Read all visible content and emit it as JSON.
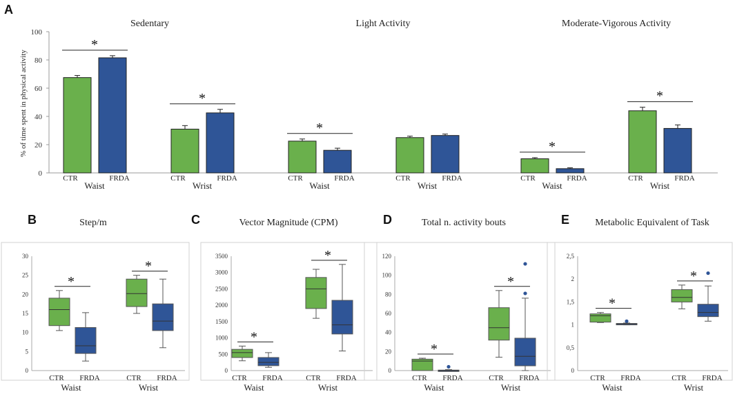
{
  "colors": {
    "ctr": "#6ab04c",
    "frda": "#2f5597",
    "outlier": "#2f5597",
    "axis": "#888888"
  },
  "chart_data": [
    {
      "id": "A",
      "type": "bar",
      "panel_label": "A",
      "ylabel": "% of time spent in physical activity",
      "ylim": [
        0,
        100
      ],
      "yticks": [
        0,
        20,
        40,
        60,
        80,
        100
      ],
      "series_names": [
        "CTR",
        "FRDA"
      ],
      "subplots": [
        {
          "title": "Sedentary",
          "groups": [
            {
              "name": "Waist",
              "values": [
                67.5,
                81.5
              ],
              "errors": [
                1.5,
                1.5
              ],
              "sig": "*"
            },
            {
              "name": "Wrist",
              "values": [
                31,
                42.5
              ],
              "errors": [
                2.5,
                2.5
              ],
              "sig": "*"
            }
          ]
        },
        {
          "title": "Light Activity",
          "groups": [
            {
              "name": "Waist",
              "values": [
                22.5,
                16
              ],
              "errors": [
                1.5,
                1.5
              ],
              "sig": "*"
            },
            {
              "name": "Wrist",
              "values": [
                25,
                26.5
              ],
              "errors": [
                1,
                1
              ],
              "sig": ""
            }
          ]
        },
        {
          "title": "Moderate-Vigorous Activity",
          "groups": [
            {
              "name": "Waist",
              "values": [
                10,
                3
              ],
              "errors": [
                0.8,
                0.6
              ],
              "sig": "*"
            },
            {
              "name": "Wrist",
              "values": [
                44,
                31.5
              ],
              "errors": [
                2.5,
                2.5
              ],
              "sig": "*"
            }
          ]
        }
      ]
    },
    {
      "id": "B",
      "type": "box",
      "panel_label": "B",
      "title": "Step/m",
      "ylim": [
        0,
        30
      ],
      "yticks": [
        "0",
        "5",
        "10",
        "15",
        "20",
        "25",
        "30"
      ],
      "ytick_values": [
        0,
        5,
        10,
        15,
        20,
        25,
        30
      ],
      "series_names": [
        "CTR",
        "FRDA"
      ],
      "groups": [
        {
          "name": "Waist",
          "sig": "*",
          "boxes": [
            {
              "min": 10.5,
              "q1": 11.8,
              "median": 16,
              "q3": 19,
              "max": 21,
              "outliers": []
            },
            {
              "min": 2.5,
              "q1": 4.5,
              "median": 6.5,
              "q3": 11.3,
              "max": 15.2,
              "outliers": []
            }
          ]
        },
        {
          "name": "Wrist",
          "sig": "*",
          "boxes": [
            {
              "min": 15,
              "q1": 16.8,
              "median": 20.2,
              "q3": 24,
              "max": 25,
              "outliers": []
            },
            {
              "min": 6,
              "q1": 10.5,
              "median": 13,
              "q3": 17.5,
              "max": 24,
              "outliers": []
            }
          ]
        }
      ]
    },
    {
      "id": "C",
      "type": "box",
      "panel_label": "C",
      "title": "Vector Magnitude (CPM)",
      "ylim": [
        0,
        3500
      ],
      "yticks": [
        "0",
        "500",
        "1000",
        "1500",
        "2000",
        "2500",
        "3000",
        "3500"
      ],
      "ytick_values": [
        0,
        500,
        1000,
        1500,
        2000,
        2500,
        3000,
        3500
      ],
      "series_names": [
        "CTR",
        "FRDA"
      ],
      "groups": [
        {
          "name": "Waist",
          "sig": "*",
          "boxes": [
            {
              "min": 300,
              "q1": 400,
              "median": 550,
              "q3": 650,
              "max": 750,
              "outliers": []
            },
            {
              "min": 100,
              "q1": 150,
              "median": 250,
              "q3": 400,
              "max": 550,
              "outliers": []
            }
          ]
        },
        {
          "name": "Wrist",
          "sig": "*",
          "boxes": [
            {
              "min": 1600,
              "q1": 1900,
              "median": 2500,
              "q3": 2850,
              "max": 3100,
              "outliers": []
            },
            {
              "min": 600,
              "q1": 1120,
              "median": 1400,
              "q3": 2150,
              "max": 3250,
              "outliers": []
            }
          ]
        }
      ]
    },
    {
      "id": "D",
      "type": "box",
      "panel_label": "D",
      "title": "Total n. activity bouts",
      "ylim": [
        0,
        120
      ],
      "yticks": [
        "0",
        "20",
        "40",
        "60",
        "80",
        "100",
        "120"
      ],
      "ytick_values": [
        0,
        20,
        40,
        60,
        80,
        100,
        120
      ],
      "series_names": [
        "CTR",
        "FRDA"
      ],
      "groups": [
        {
          "name": "Waist",
          "sig": "*",
          "boxes": [
            {
              "min": 0,
              "q1": 0,
              "median": 10,
              "q3": 12,
              "max": 13,
              "outliers": []
            },
            {
              "min": 0,
              "q1": 0,
              "median": 0,
              "q3": 0.5,
              "max": 1,
              "outliers": [
                4
              ]
            }
          ]
        },
        {
          "name": "Wrist",
          "sig": "*",
          "boxes": [
            {
              "min": 14,
              "q1": 32,
              "median": 45,
              "q3": 66,
              "max": 84,
              "outliers": []
            },
            {
              "min": 0,
              "q1": 5,
              "median": 15,
              "q3": 34,
              "max": 76,
              "outliers": [
                81,
                112
              ]
            }
          ]
        }
      ]
    },
    {
      "id": "E",
      "type": "box",
      "panel_label": "E",
      "title": "Metabolic Equivalent of Task",
      "ylim": [
        0,
        2.5
      ],
      "yticks": [
        "0",
        "0,5",
        "1",
        "1,5",
        "2",
        "2,5"
      ],
      "ytick_values": [
        0,
        0.5,
        1,
        1.5,
        2,
        2.5
      ],
      "series_names": [
        "CTR",
        "FRDA"
      ],
      "groups": [
        {
          "name": "Waist",
          "sig": "*",
          "boxes": [
            {
              "min": 1.05,
              "q1": 1.06,
              "median": 1.2,
              "q3": 1.24,
              "max": 1.27,
              "outliers": []
            },
            {
              "min": 1.0,
              "q1": 1.01,
              "median": 1.02,
              "q3": 1.03,
              "max": 1.04,
              "outliers": [
                1.08
              ]
            }
          ]
        },
        {
          "name": "Wrist",
          "sig": "*",
          "boxes": [
            {
              "min": 1.35,
              "q1": 1.5,
              "median": 1.6,
              "q3": 1.77,
              "max": 1.87,
              "outliers": []
            },
            {
              "min": 1.08,
              "q1": 1.18,
              "median": 1.27,
              "q3": 1.45,
              "max": 1.85,
              "outliers": [
                2.13
              ]
            }
          ]
        }
      ]
    }
  ]
}
